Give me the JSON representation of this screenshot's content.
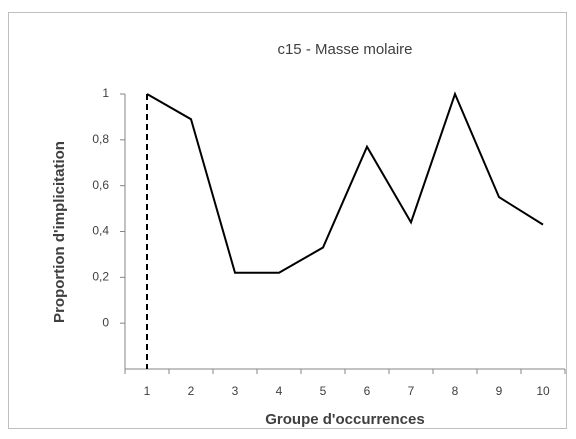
{
  "chart_data": {
    "type": "line",
    "title": "c15 - Masse molaire",
    "x_label": "Groupe d'occurrences",
    "y_label": "Proportion d'implicitation",
    "categories": [
      "1",
      "2",
      "3",
      "4",
      "5",
      "6",
      "7",
      "8",
      "9",
      "10"
    ],
    "values": [
      1,
      0.89,
      0.22,
      0.22,
      0.33,
      0.77,
      0.44,
      1,
      0.55,
      0.43
    ],
    "color": "#000000",
    "ylim": [
      -0.2,
      1
    ],
    "yticks": [
      0,
      {
        "value": 0.2,
        "label": "0,2"
      },
      {
        "value": 0.4,
        "label": "0,4"
      },
      {
        "value": 0.6,
        "label": "0,6"
      },
      {
        "value": 0.8,
        "label": "0,8"
      },
      1
    ],
    "grid": false
  }
}
